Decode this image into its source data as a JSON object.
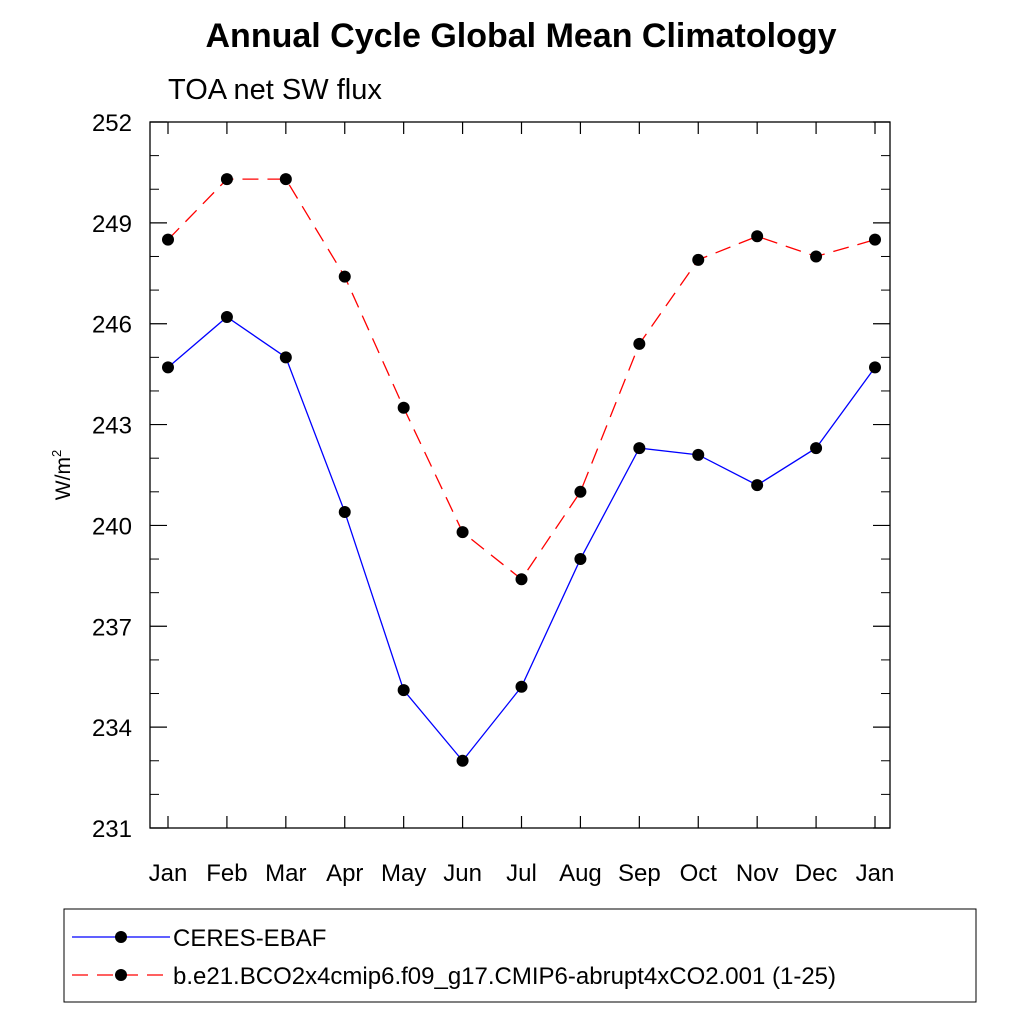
{
  "chart_data": {
    "type": "line",
    "title": "Annual Cycle Global Mean Climatology",
    "subtitle": "TOA net SW flux",
    "ylabel": "W/m",
    "ylabel_superscript": "2",
    "xlabel": "",
    "ylim": [
      231,
      252
    ],
    "yticks": [
      231,
      234,
      237,
      240,
      243,
      246,
      249,
      252
    ],
    "ytick_labels": [
      "231",
      "234",
      "237",
      "240",
      "243",
      "246",
      "249",
      "252"
    ],
    "categories": [
      "Jan",
      "Feb",
      "Mar",
      "Apr",
      "May",
      "Jun",
      "Jul",
      "Aug",
      "Sep",
      "Oct",
      "Nov",
      "Dec",
      "Jan"
    ],
    "grid": false,
    "legend_position": "bottom",
    "series": [
      {
        "name": "CERES-EBAF",
        "color": "#0000ff",
        "line_style": "solid",
        "marker": "circle",
        "values": [
          244.7,
          246.2,
          245.0,
          240.4,
          235.1,
          233.0,
          235.2,
          239.0,
          242.3,
          242.1,
          241.2,
          242.3,
          244.7
        ]
      },
      {
        "name": "b.e21.BCO2x4cmip6.f09_g17.CMIP6-abrupt4xCO2.001 (1-25)",
        "color": "#ff0000",
        "line_style": "dashed",
        "marker": "circle",
        "values": [
          248.5,
          250.3,
          250.3,
          247.4,
          243.5,
          239.8,
          238.4,
          241.0,
          245.4,
          247.9,
          248.6,
          248.0,
          248.5
        ]
      }
    ]
  }
}
